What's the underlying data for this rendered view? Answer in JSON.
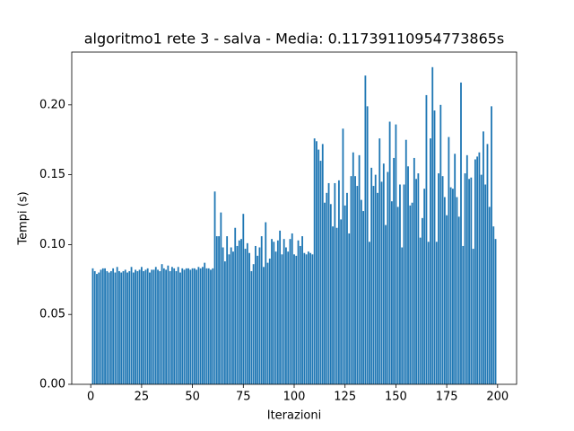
{
  "chart_data": {
    "type": "bar",
    "title": "algoritmo1 rete 3 - salva - Media: 0.11739110954773865s",
    "x_label": "Iterazioni",
    "y_label": "Tempi (s)",
    "color": "#1f77b4",
    "x": [
      1,
      2,
      3,
      4,
      5,
      6,
      7,
      8,
      9,
      10,
      11,
      12,
      13,
      14,
      15,
      16,
      17,
      18,
      19,
      20,
      21,
      22,
      23,
      24,
      25,
      26,
      27,
      28,
      29,
      30,
      31,
      32,
      33,
      34,
      35,
      36,
      37,
      38,
      39,
      40,
      41,
      42,
      43,
      44,
      45,
      46,
      47,
      48,
      49,
      50,
      51,
      52,
      53,
      54,
      55,
      56,
      57,
      58,
      59,
      60,
      61,
      62,
      63,
      64,
      65,
      66,
      67,
      68,
      69,
      70,
      71,
      72,
      73,
      74,
      75,
      76,
      77,
      78,
      79,
      80,
      81,
      82,
      83,
      84,
      85,
      86,
      87,
      88,
      89,
      90,
      91,
      92,
      93,
      94,
      95,
      96,
      97,
      98,
      99,
      100,
      101,
      102,
      103,
      104,
      105,
      106,
      107,
      108,
      109,
      110,
      111,
      112,
      113,
      114,
      115,
      116,
      117,
      118,
      119,
      120,
      121,
      122,
      123,
      124,
      125,
      126,
      127,
      128,
      129,
      130,
      131,
      132,
      133,
      134,
      135,
      136,
      137,
      138,
      139,
      140,
      141,
      142,
      143,
      144,
      145,
      146,
      147,
      148,
      149,
      150,
      151,
      152,
      153,
      154,
      155,
      156,
      157,
      158,
      159,
      160,
      161,
      162,
      163,
      164,
      165,
      166,
      167,
      168,
      169,
      170,
      171,
      172,
      173,
      174,
      175,
      176,
      177,
      178,
      179,
      180,
      181,
      182,
      183,
      184,
      185,
      186,
      187,
      188,
      189,
      190,
      191,
      192,
      193,
      194,
      195,
      196,
      197,
      198,
      199
    ],
    "values": [
      0.083,
      0.081,
      0.079,
      0.08,
      0.082,
      0.083,
      0.083,
      0.081,
      0.08,
      0.081,
      0.083,
      0.08,
      0.084,
      0.081,
      0.08,
      0.081,
      0.082,
      0.08,
      0.081,
      0.084,
      0.08,
      0.082,
      0.081,
      0.082,
      0.084,
      0.081,
      0.082,
      0.083,
      0.08,
      0.082,
      0.082,
      0.084,
      0.082,
      0.081,
      0.086,
      0.083,
      0.082,
      0.085,
      0.081,
      0.084,
      0.083,
      0.081,
      0.084,
      0.08,
      0.083,
      0.082,
      0.083,
      0.083,
      0.082,
      0.083,
      0.083,
      0.082,
      0.084,
      0.083,
      0.084,
      0.087,
      0.083,
      0.083,
      0.082,
      0.083,
      0.138,
      0.106,
      0.106,
      0.123,
      0.098,
      0.088,
      0.106,
      0.093,
      0.098,
      0.095,
      0.112,
      0.099,
      0.103,
      0.104,
      0.122,
      0.097,
      0.101,
      0.094,
      0.081,
      0.086,
      0.099,
      0.092,
      0.098,
      0.106,
      0.084,
      0.116,
      0.087,
      0.09,
      0.104,
      0.102,
      0.095,
      0.103,
      0.11,
      0.093,
      0.104,
      0.098,
      0.095,
      0.104,
      0.108,
      0.093,
      0.092,
      0.103,
      0.099,
      0.106,
      0.094,
      0.093,
      0.095,
      0.094,
      0.093,
      0.176,
      0.174,
      0.168,
      0.16,
      0.172,
      0.13,
      0.137,
      0.144,
      0.129,
      0.113,
      0.144,
      0.112,
      0.146,
      0.118,
      0.183,
      0.128,
      0.137,
      0.108,
      0.149,
      0.166,
      0.149,
      0.142,
      0.164,
      0.132,
      0.124,
      0.221,
      0.199,
      0.102,
      0.155,
      0.142,
      0.15,
      0.137,
      0.176,
      0.145,
      0.158,
      0.114,
      0.152,
      0.188,
      0.131,
      0.162,
      0.186,
      0.127,
      0.143,
      0.098,
      0.143,
      0.175,
      0.156,
      0.128,
      0.13,
      0.162,
      0.147,
      0.151,
      0.105,
      0.119,
      0.14,
      0.207,
      0.102,
      0.176,
      0.227,
      0.196,
      0.102,
      0.151,
      0.2,
      0.149,
      0.134,
      0.121,
      0.177,
      0.141,
      0.14,
      0.165,
      0.134,
      0.12,
      0.216,
      0.099,
      0.151,
      0.164,
      0.147,
      0.148,
      0.097,
      0.161,
      0.163,
      0.166,
      0.15,
      0.181,
      0.143,
      0.172,
      0.127,
      0.199,
      0.113,
      0.104
    ],
    "xlim": [
      -9.34,
      209.34
    ],
    "xticks": [
      0,
      25,
      50,
      75,
      100,
      125,
      150,
      175,
      200
    ],
    "ylim": [
      0,
      0.2378
    ],
    "yticks": [
      {
        "value": 0,
        "label": "0.00"
      },
      {
        "value": 0.05,
        "label": "0.05"
      },
      {
        "value": 0.1,
        "label": "0.10"
      },
      {
        "value": 0.15,
        "label": "0.15"
      },
      {
        "value": 0.2,
        "label": "0.20"
      }
    ],
    "grid": false
  }
}
